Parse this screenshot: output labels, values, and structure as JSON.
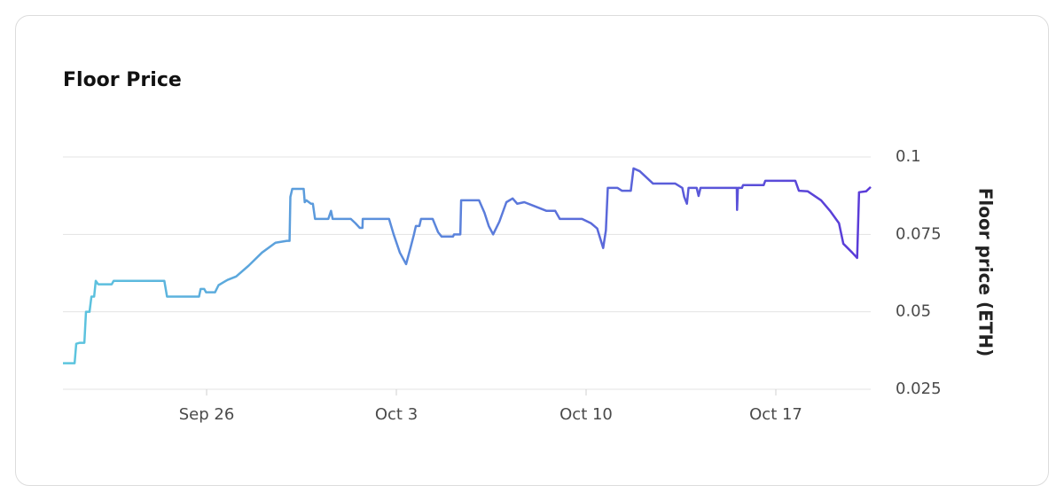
{
  "chart_data": {
    "type": "line",
    "title": "Floor Price",
    "y_label": "Floor price (ETH)",
    "y_axis_side": "right",
    "grid": true,
    "xlim": [
      20.7,
      50.5
    ],
    "xticks": [
      {
        "value": 26,
        "label": "Sep 26"
      },
      {
        "value": 33,
        "label": "Oct 3"
      },
      {
        "value": 40,
        "label": "Oct 10"
      },
      {
        "value": 47,
        "label": "Oct 17"
      }
    ],
    "ylim": [
      0.025,
      0.1
    ],
    "yticks": [
      0.1,
      0.075,
      0.05,
      0.025
    ],
    "series": [
      {
        "colors": [
          "#5cc6de",
          "#5a3ad8"
        ],
        "x": [
          20.7,
          21.13,
          21.19,
          21.32,
          21.49,
          21.55,
          21.68,
          21.75,
          21.85,
          21.91,
          22.0,
          22.5,
          22.57,
          24.44,
          24.54,
          25.72,
          25.78,
          25.91,
          25.98,
          26.31,
          26.44,
          26.77,
          27.09,
          27.55,
          28.04,
          28.54,
          28.96,
          29.06,
          29.09,
          29.16,
          29.58,
          29.62,
          29.68,
          29.85,
          29.92,
          30.0,
          30.49,
          30.59,
          30.65,
          31.32,
          31.49,
          31.65,
          31.75,
          31.76,
          32.73,
          32.9,
          33.13,
          33.36,
          33.52,
          33.65,
          33.72,
          33.85,
          33.91,
          34.34,
          34.54,
          34.67,
          35.09,
          35.13,
          35.36,
          35.39,
          36.05,
          36.25,
          36.41,
          36.57,
          36.8,
          37.06,
          37.29,
          37.46,
          37.72,
          38.04,
          38.54,
          38.86,
          39.03,
          39.85,
          40.18,
          40.41,
          40.63,
          40.73,
          40.8,
          41.16,
          41.32,
          41.65,
          41.75,
          41.98,
          42.47,
          43.29,
          43.55,
          43.62,
          43.72,
          43.78,
          44.08,
          44.15,
          44.22,
          45.56,
          45.57,
          45.6,
          45.75,
          45.79,
          46.55,
          46.61,
          47.72,
          47.85,
          48.18,
          48.67,
          49.0,
          49.33,
          49.49,
          49.82,
          50.0,
          50.07,
          50.33,
          50.5
        ],
        "values": [
          0.0334,
          0.0334,
          0.0397,
          0.04,
          0.04,
          0.05,
          0.05,
          0.0549,
          0.0549,
          0.06,
          0.0589,
          0.0589,
          0.06,
          0.06,
          0.0549,
          0.0549,
          0.0574,
          0.0574,
          0.0563,
          0.0563,
          0.0586,
          0.0603,
          0.0614,
          0.0649,
          0.0691,
          0.0723,
          0.0729,
          0.0729,
          0.0871,
          0.0897,
          0.0897,
          0.0854,
          0.086,
          0.0849,
          0.0849,
          0.08,
          0.08,
          0.0826,
          0.08,
          0.08,
          0.0786,
          0.0771,
          0.0771,
          0.08,
          0.08,
          0.075,
          0.0691,
          0.0654,
          0.0706,
          0.075,
          0.0777,
          0.0777,
          0.08,
          0.08,
          0.0757,
          0.0743,
          0.0743,
          0.075,
          0.075,
          0.086,
          0.086,
          0.082,
          0.0777,
          0.075,
          0.0791,
          0.0854,
          0.0866,
          0.0849,
          0.0854,
          0.0843,
          0.0826,
          0.0826,
          0.08,
          0.08,
          0.0786,
          0.0769,
          0.0706,
          0.0763,
          0.09,
          0.09,
          0.0891,
          0.0891,
          0.0963,
          0.0954,
          0.0914,
          0.0914,
          0.09,
          0.0871,
          0.0849,
          0.09,
          0.09,
          0.0874,
          0.09,
          0.09,
          0.0829,
          0.09,
          0.09,
          0.0909,
          0.0909,
          0.0923,
          0.0923,
          0.0891,
          0.0889,
          0.086,
          0.0826,
          0.0786,
          0.072,
          0.0691,
          0.0674,
          0.0886,
          0.0889,
          0.0903
        ]
      }
    ]
  }
}
